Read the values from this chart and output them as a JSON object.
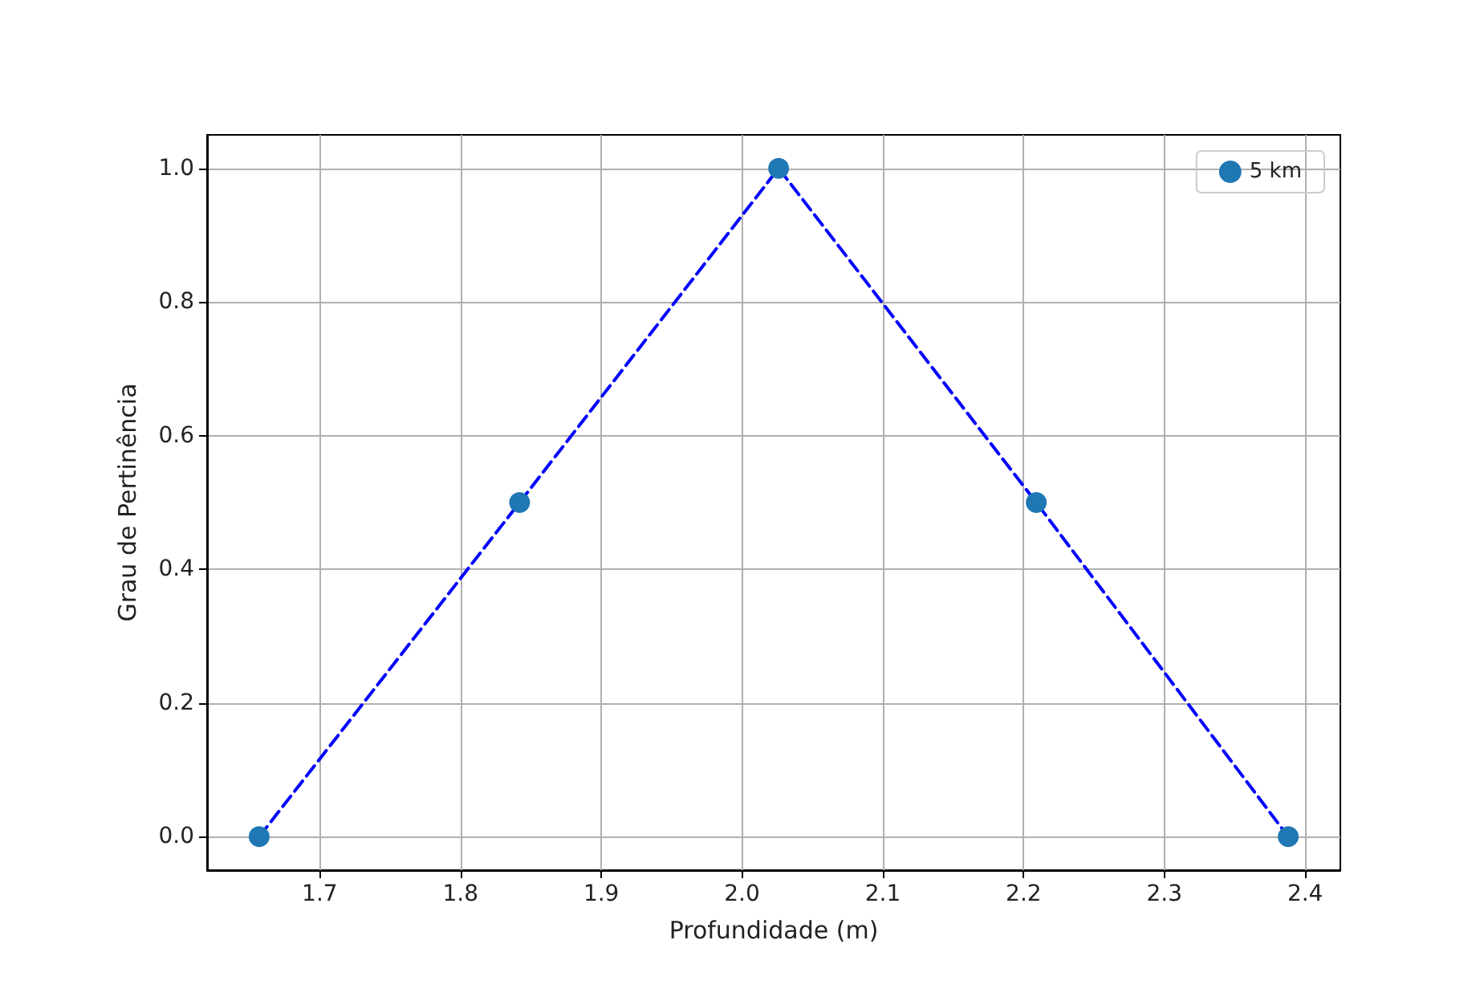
{
  "chart_data": {
    "type": "scatter",
    "xlabel": "Profundidade (m)",
    "ylabel": "Grau de Pertinência",
    "xlim": [
      1.62,
      2.425
    ],
    "ylim": [
      -0.05,
      1.05
    ],
    "xticks": [
      1.7,
      1.8,
      1.9,
      {
        "value": 2,
        "label": "2.0"
      },
      2.1,
      2.2,
      2.3,
      2.4
    ],
    "yticks": [
      {
        "value": 0,
        "label": "0.0"
      },
      {
        "value": 0.2,
        "label": "0.2"
      },
      {
        "value": 0.4,
        "label": "0.4"
      },
      {
        "value": 0.6,
        "label": "0.6"
      },
      {
        "value": 0.8,
        "label": "0.8"
      },
      {
        "value": 1,
        "label": "1.0"
      }
    ],
    "grid": true,
    "legend": "top right",
    "series": [
      {
        "type": "line",
        "color": "#0000ff",
        "line_style": "dashed",
        "marker": "none",
        "x": [
          1.657,
          1.842,
          2.026,
          2.209,
          2.388
        ],
        "values": [
          0,
          0.5,
          1,
          0.5,
          0
        ]
      },
      {
        "name": "5 km",
        "color": "#1f77b4",
        "marker": "circle",
        "x": [
          1.657,
          1.842,
          2.026,
          2.209,
          2.388
        ],
        "values": [
          0,
          0.5,
          1,
          0.5,
          0
        ]
      }
    ]
  }
}
